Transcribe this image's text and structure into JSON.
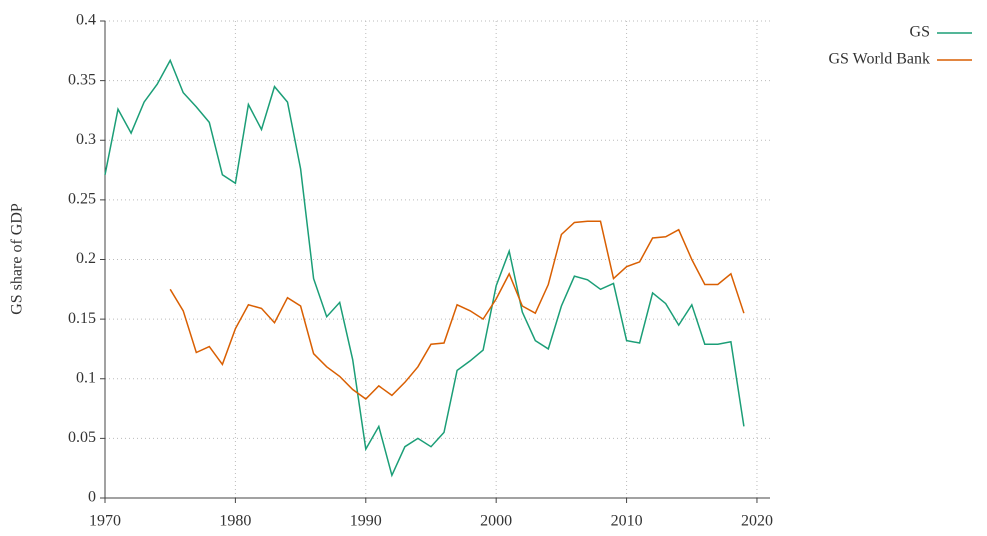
{
  "chart_data": {
    "type": "line",
    "y_label": "GS share of GDP",
    "x": [
      1970,
      1971,
      1972,
      1973,
      1974,
      1975,
      1976,
      1977,
      1978,
      1979,
      1980,
      1981,
      1982,
      1983,
      1984,
      1985,
      1986,
      1987,
      1988,
      1989,
      1990,
      1991,
      1992,
      1993,
      1994,
      1995,
      1996,
      1997,
      1998,
      1999,
      2000,
      2001,
      2002,
      2003,
      2004,
      2005,
      2006,
      2007,
      2008,
      2009,
      2010,
      2011,
      2012,
      2013,
      2014,
      2015,
      2016,
      2017,
      2018,
      2019
    ],
    "series": [
      {
        "name": "GS",
        "color": "#1b9e77",
        "values": [
          0.271,
          0.326,
          0.306,
          0.332,
          0.347,
          0.367,
          0.34,
          0.328,
          0.315,
          0.271,
          0.264,
          0.33,
          0.309,
          0.345,
          0.332,
          0.276,
          0.184,
          0.152,
          0.164,
          0.116,
          0.041,
          0.06,
          0.019,
          0.043,
          0.05,
          0.043,
          0.055,
          0.107,
          0.115,
          0.124,
          0.178,
          0.207,
          0.156,
          0.132,
          0.125,
          0.161,
          0.186,
          0.183,
          0.175,
          0.18,
          0.132,
          0.13,
          0.172,
          0.163,
          0.145,
          0.162,
          0.129,
          0.129,
          0.131,
          0.06
        ]
      },
      {
        "name": "GS World Bank",
        "color": "#d95f02",
        "values": [
          null,
          null,
          null,
          null,
          null,
          0.175,
          0.157,
          0.122,
          0.127,
          0.112,
          0.142,
          0.162,
          0.159,
          0.147,
          0.168,
          0.161,
          0.121,
          0.11,
          0.102,
          0.091,
          0.083,
          0.094,
          0.086,
          0.097,
          0.11,
          0.129,
          0.13,
          0.162,
          0.157,
          0.15,
          0.167,
          0.188,
          0.161,
          0.155,
          0.179,
          0.221,
          0.231,
          0.232,
          0.232,
          0.184,
          0.194,
          0.198,
          0.218,
          0.219,
          0.225,
          0.2,
          0.179,
          0.179,
          0.188,
          0.155
        ]
      }
    ],
    "xlim": [
      1970,
      2021
    ],
    "xticks": [
      1970,
      1980,
      1990,
      2000,
      2010,
      2020
    ],
    "ylim": [
      0,
      0.4
    ],
    "yticks": [
      0,
      0.05,
      0.1,
      0.15,
      0.2,
      0.25,
      0.3,
      0.35,
      0.4
    ],
    "grid": true,
    "legend": "top-right"
  }
}
